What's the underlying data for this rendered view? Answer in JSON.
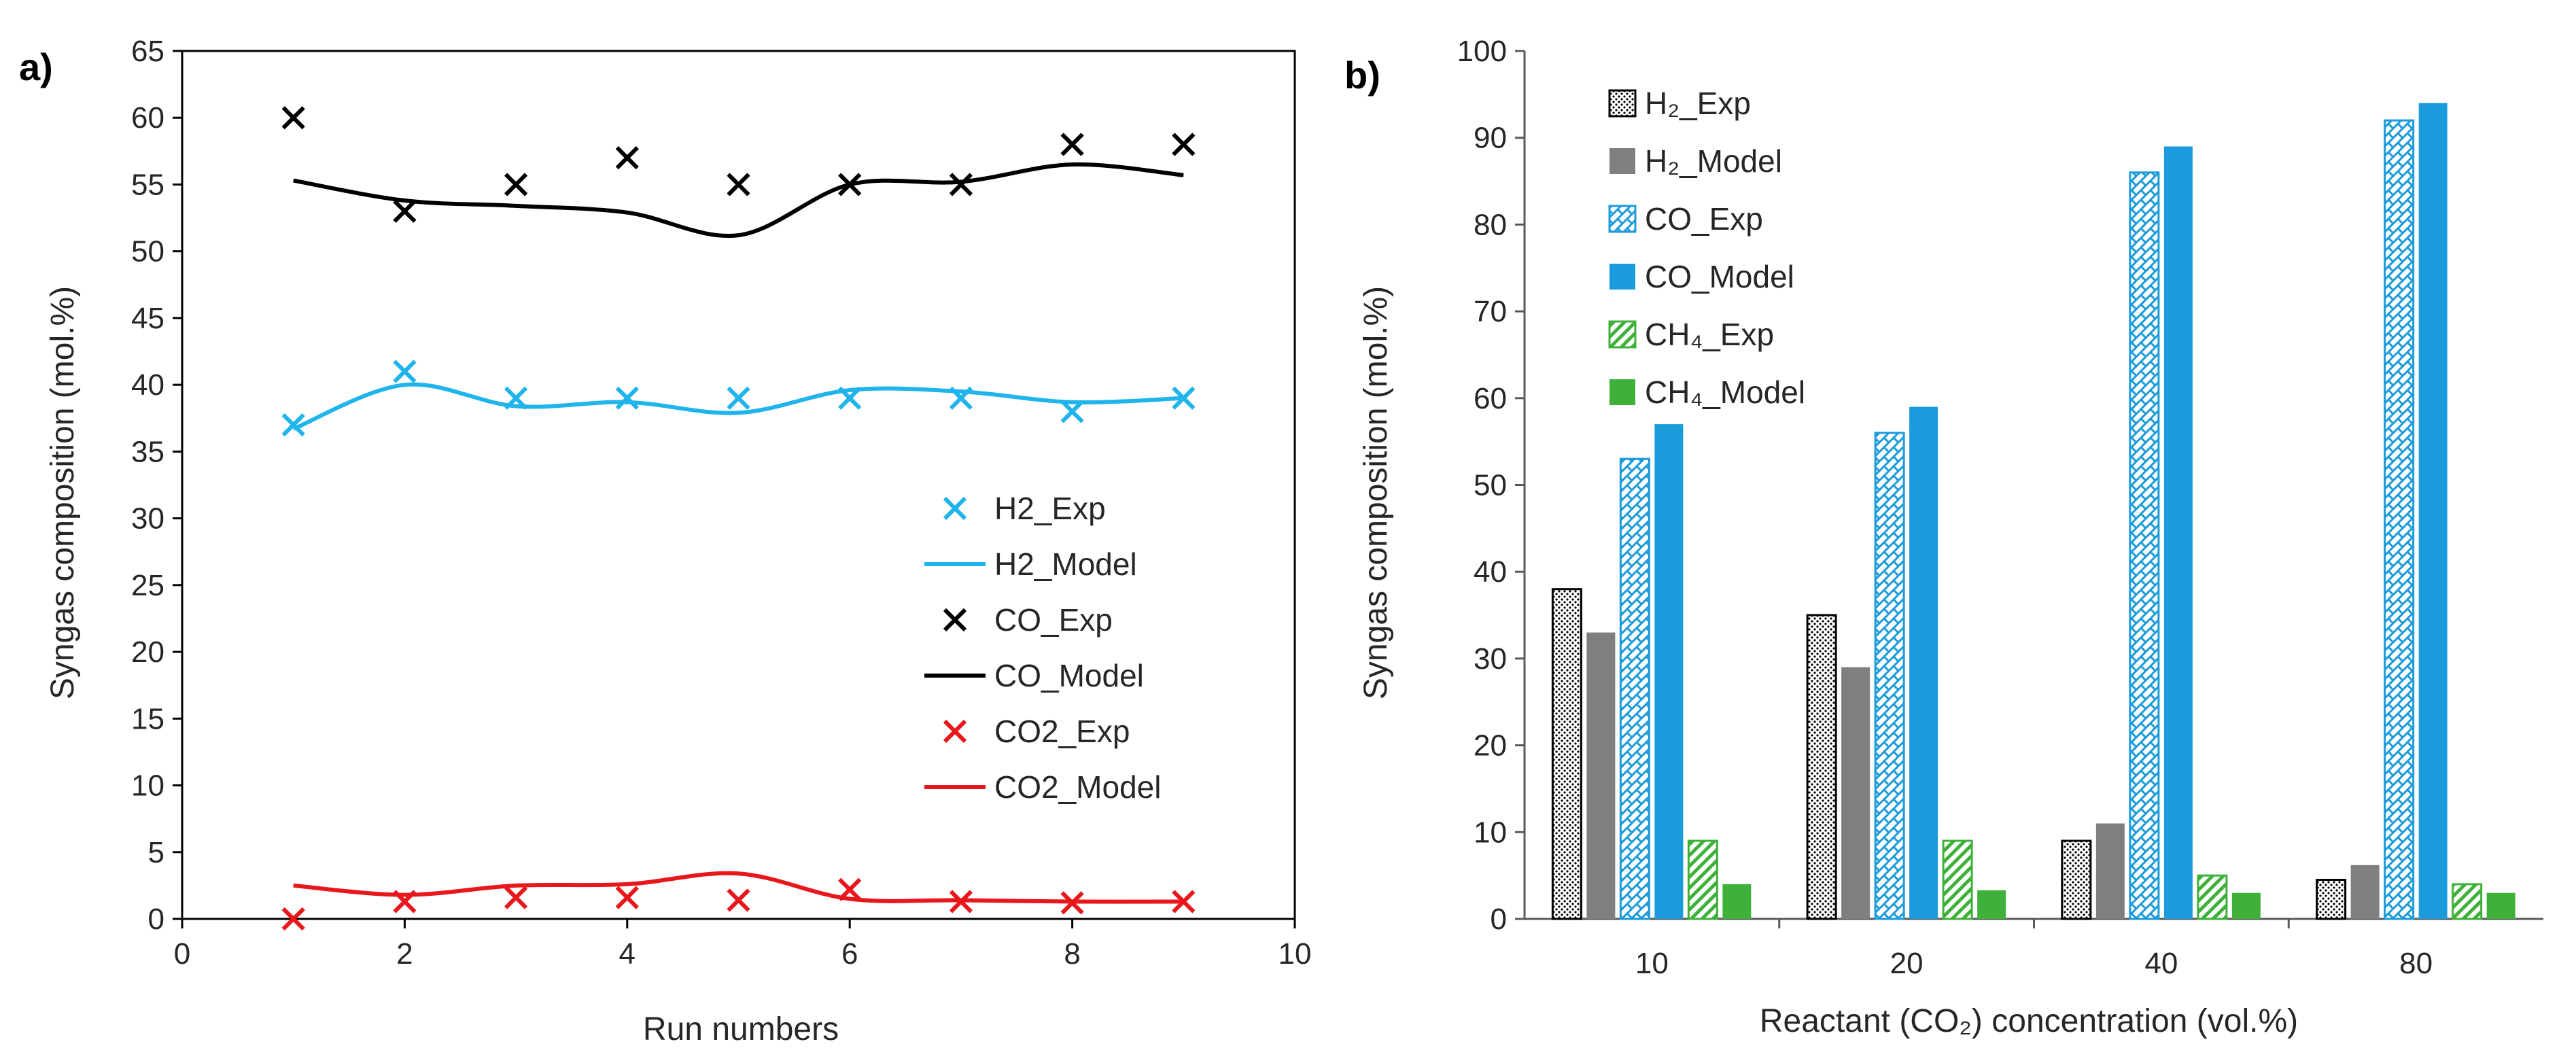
{
  "chart_data": [
    {
      "panel_label": "a)",
      "type": "line",
      "xlabel": "Run numbers",
      "ylabel": "Syngas composition (mol.%)",
      "xlim": [
        0,
        10
      ],
      "ylim": [
        0,
        65
      ],
      "x_ticks": [
        0,
        2,
        4,
        6,
        8,
        10
      ],
      "y_ticks": [
        0,
        5,
        10,
        15,
        20,
        25,
        30,
        35,
        40,
        45,
        50,
        55,
        60,
        65
      ],
      "grid": false,
      "legend_position": "right",
      "colors": {
        "H2": "#1FB4EB",
        "CO": "#000000",
        "CO2": "#E8171B"
      },
      "series": [
        {
          "name": "H2_Exp",
          "kind": "marker",
          "color": "#1FB4EB",
          "x": [
            1,
            2,
            3,
            4,
            5,
            6,
            7,
            8,
            9
          ],
          "y": [
            37,
            41,
            39,
            39,
            39,
            39,
            39,
            38,
            39
          ]
        },
        {
          "name": "H2_Model",
          "kind": "line",
          "color": "#1FB4EB",
          "x": [
            1,
            2,
            3,
            4,
            5,
            6,
            7,
            8,
            9
          ],
          "y": [
            36.7,
            40.0,
            38.4,
            38.7,
            37.9,
            39.6,
            39.5,
            38.7,
            39.0
          ]
        },
        {
          "name": "CO_Exp",
          "kind": "marker",
          "color": "#000000",
          "x": [
            1,
            2,
            3,
            4,
            5,
            6,
            7,
            8,
            9
          ],
          "y": [
            60,
            53,
            55,
            57,
            55,
            55,
            55,
            58,
            58
          ]
        },
        {
          "name": "CO_Model",
          "kind": "line",
          "color": "#000000",
          "x": [
            1,
            2,
            3,
            4,
            5,
            6,
            7,
            8,
            9
          ],
          "y": [
            55.3,
            53.8,
            53.4,
            52.9,
            51.2,
            55.0,
            55.2,
            56.5,
            55.7
          ]
        },
        {
          "name": "CO2_Exp",
          "kind": "marker",
          "color": "#E8171B",
          "x": [
            1,
            2,
            3,
            4,
            5,
            6,
            7,
            8,
            9
          ],
          "y": [
            0,
            1.3,
            1.6,
            1.6,
            1.4,
            2.2,
            1.3,
            1.2,
            1.3
          ]
        },
        {
          "name": "CO2_Model",
          "kind": "line",
          "color": "#E8171B",
          "x": [
            1,
            2,
            3,
            4,
            5,
            6,
            7,
            8,
            9
          ],
          "y": [
            2.5,
            1.8,
            2.5,
            2.6,
            3.4,
            1.5,
            1.4,
            1.3,
            1.3
          ]
        }
      ]
    },
    {
      "panel_label": "b)",
      "type": "bar",
      "xlabel": "Reactant (CO₂) concentration (vol.%)",
      "ylabel": "Syngas composition (mol.%)",
      "categories": [
        "10",
        "20",
        "40",
        "80"
      ],
      "ylim": [
        0,
        100
      ],
      "y_ticks": [
        0,
        10,
        20,
        30,
        40,
        50,
        60,
        70,
        80,
        90,
        100
      ],
      "grid": false,
      "legend_position": "top-left",
      "series": [
        {
          "name": "H₂_Exp",
          "pattern": "dots",
          "color": "#000000",
          "values": [
            38,
            35,
            9,
            4.5
          ]
        },
        {
          "name": "H₂_Model",
          "pattern": "solid",
          "color": "#7F7F7F",
          "values": [
            33,
            29,
            11,
            6.2
          ]
        },
        {
          "name": "CO_Exp",
          "pattern": "crosshatch",
          "color": "#1B9BDB",
          "values": [
            53,
            56,
            86,
            92
          ]
        },
        {
          "name": "CO_Model",
          "pattern": "solid",
          "color": "#1B9BDB",
          "values": [
            57,
            59,
            89,
            94
          ]
        },
        {
          "name": "CH₄_Exp",
          "pattern": "diagonal",
          "color": "#3FB13A",
          "values": [
            9,
            9,
            5,
            4
          ]
        },
        {
          "name": "CH₄_Model",
          "pattern": "solid",
          "color": "#3FB13A",
          "values": [
            4,
            3.3,
            3,
            3
          ]
        }
      ]
    }
  ]
}
